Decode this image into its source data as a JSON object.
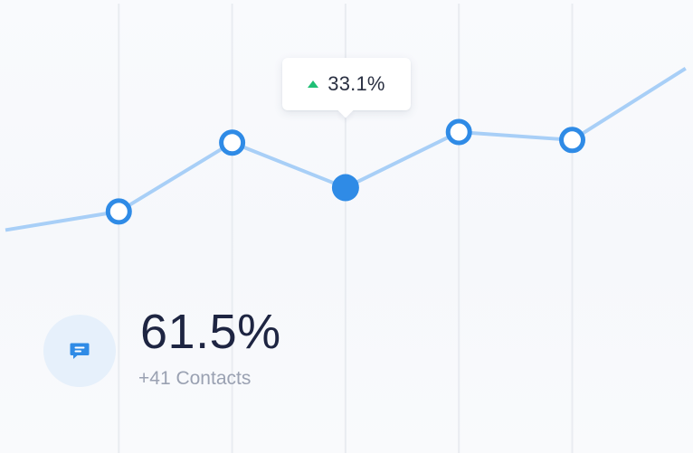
{
  "chart_data": {
    "type": "line",
    "tooltip": {
      "direction": "up",
      "value": "33.1%"
    },
    "colors": {
      "line": "#a8cff7",
      "marker": "#2f8be6",
      "tooltip_arrow": "#1fbf75"
    },
    "points": [
      {
        "x": 0,
        "y": 0.49,
        "marker": "none"
      },
      {
        "x": 1,
        "y": 0.56,
        "marker": "hollow"
      },
      {
        "x": 2,
        "y": 0.82,
        "marker": "hollow"
      },
      {
        "x": 3,
        "y": 0.65,
        "marker": "filled"
      },
      {
        "x": 4,
        "y": 0.86,
        "marker": "hollow"
      },
      {
        "x": 5,
        "y": 0.83,
        "marker": "hollow"
      },
      {
        "x": 6,
        "y": 1.1,
        "marker": "none"
      }
    ],
    "selected_index": 3,
    "grid": true
  },
  "stat": {
    "icon": "chat-message-icon",
    "value": "61.5%",
    "caption": "+41 Contacts"
  }
}
